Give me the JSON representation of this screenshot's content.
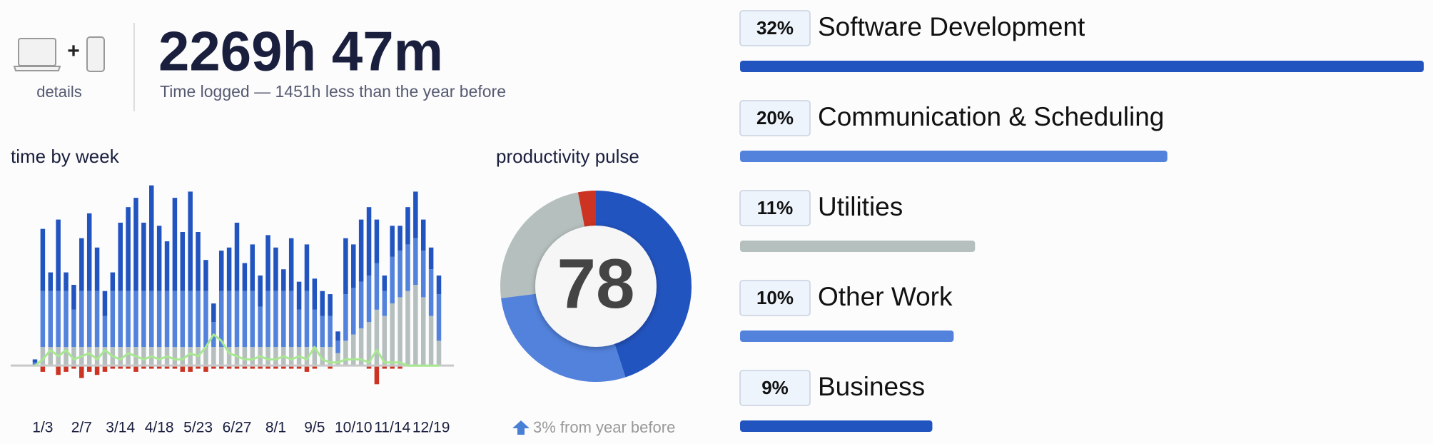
{
  "header": {
    "details": "details",
    "total": "2269h 47m",
    "subtitle": "Time logged — 1451h less than the year before"
  },
  "chart_data": [
    {
      "type": "bar",
      "stacked": true,
      "title": "time by week",
      "categories": [
        null,
        "1/3",
        null,
        null,
        null,
        null,
        "2/7",
        null,
        null,
        null,
        null,
        "3/14",
        null,
        null,
        null,
        null,
        "4/18",
        null,
        null,
        null,
        null,
        "5/23",
        null,
        null,
        null,
        null,
        "6/27",
        null,
        null,
        null,
        null,
        "8/1",
        null,
        null,
        null,
        null,
        "9/5",
        null,
        null,
        null,
        null,
        "10/10",
        null,
        null,
        null,
        null,
        "11/14",
        null,
        null,
        null,
        null,
        "12/19",
        null
      ],
      "ylim": [
        -8,
        60
      ],
      "series": [
        {
          "color": "#b5bfbe",
          "values": [
            0,
            6,
            6,
            6,
            6,
            6,
            6,
            6,
            6,
            6,
            6,
            6,
            6,
            6,
            6,
            6,
            6,
            6,
            6,
            6,
            6,
            6,
            6,
            6,
            6,
            6,
            6,
            6,
            6,
            6,
            6,
            6,
            6,
            6,
            6,
            6,
            6,
            6,
            6,
            4,
            8,
            10,
            12,
            14,
            18,
            16,
            20,
            22,
            24,
            26,
            22,
            16,
            8
          ]
        },
        {
          "color": "#5282dc",
          "values": [
            1,
            18,
            18,
            18,
            18,
            12,
            18,
            18,
            18,
            10,
            18,
            18,
            18,
            18,
            18,
            18,
            18,
            18,
            18,
            18,
            18,
            18,
            18,
            8,
            18,
            18,
            18,
            18,
            18,
            13,
            18,
            18,
            18,
            18,
            12,
            18,
            12,
            10,
            10,
            4,
            15,
            15,
            15,
            15,
            15,
            8,
            15,
            15,
            15,
            15,
            15,
            15,
            15
          ]
        },
        {
          "color": "#2254c0",
          "values": [
            1,
            20,
            6,
            23,
            6,
            8,
            17,
            25,
            14,
            8,
            6,
            22,
            27,
            30,
            22,
            34,
            21,
            16,
            30,
            19,
            32,
            19,
            10,
            6,
            13,
            14,
            22,
            9,
            15,
            10,
            18,
            14,
            7,
            17,
            9,
            15,
            10,
            8,
            7,
            3,
            18,
            14,
            20,
            22,
            14,
            5,
            10,
            8,
            12,
            15,
            10,
            7,
            6
          ]
        },
        {
          "color": "#cc3322",
          "values": [
            0,
            -2,
            0,
            -3,
            -2,
            -1,
            -4,
            -2,
            -3,
            -2,
            -1,
            -1,
            -1,
            -2,
            -1,
            -1,
            -1,
            -1,
            -1,
            -2,
            -2,
            -1,
            -2,
            -1,
            -1,
            -1,
            -1,
            -1,
            -1,
            -1,
            -1,
            -1,
            -1,
            -1,
            -1,
            -2,
            -1,
            0,
            -1,
            0,
            0,
            0,
            0,
            -1,
            -6,
            -1,
            -1,
            -1,
            0,
            0,
            0,
            0,
            0
          ]
        },
        {
          "type": "line",
          "color": "#a8e890",
          "values": [
            0,
            2,
            5,
            3,
            5,
            2,
            3,
            4,
            2,
            5,
            3,
            2,
            4,
            3,
            2,
            3,
            2,
            3,
            2,
            2,
            4,
            3,
            6,
            10,
            8,
            4,
            3,
            2,
            2,
            3,
            2,
            2,
            3,
            2,
            3,
            2,
            6,
            2,
            1,
            1,
            2,
            2,
            2,
            1,
            5,
            1,
            1,
            1,
            0,
            0,
            0,
            0,
            0
          ]
        }
      ]
    },
    {
      "type": "donut",
      "title": "productivity pulse",
      "center_label": 78,
      "note": "3% from year before",
      "values": [
        45,
        28,
        24,
        3
      ],
      "colors": [
        "#2254c0",
        "#5282dc",
        "#b5bfbe",
        "#cc3322"
      ]
    },
    {
      "type": "hbar",
      "categories": [
        "Software Development",
        "Communication & Scheduling",
        "Utilities",
        "Other Work",
        "Business"
      ],
      "values": [
        32,
        20,
        11,
        10,
        9
      ],
      "value_labels": [
        "32%",
        "20%",
        "11%",
        "10%",
        "9%"
      ],
      "colors": [
        "#2254c0",
        "#5282dc",
        "#b5bfbe",
        "#5282dc",
        "#2254c0"
      ],
      "xlim": [
        0,
        32
      ]
    }
  ]
}
